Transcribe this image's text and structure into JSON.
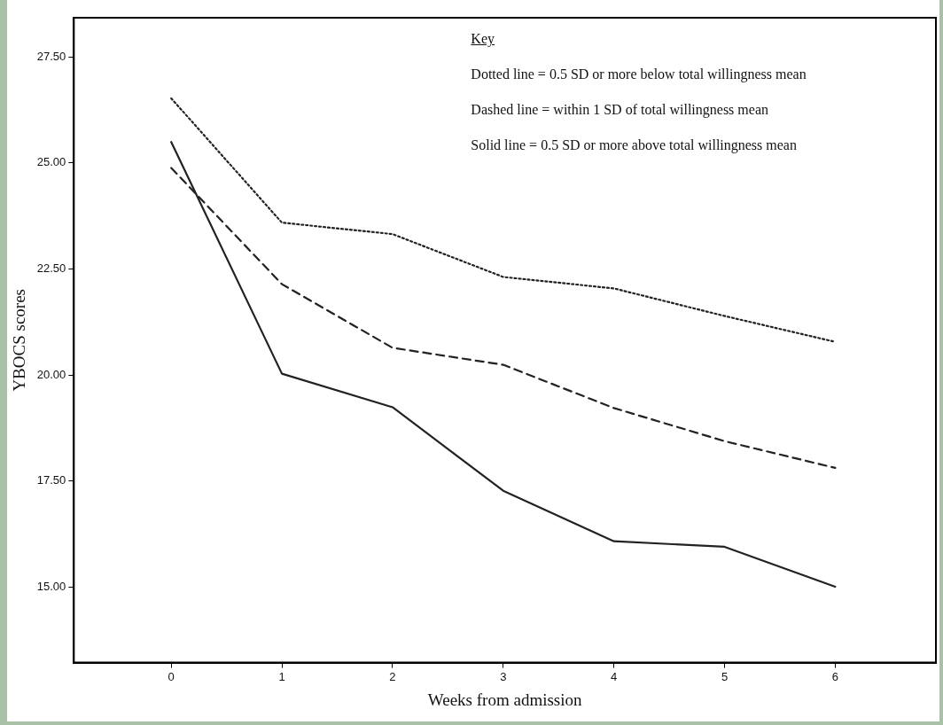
{
  "chart_data": {
    "type": "line",
    "xlabel": "Weeks from admission",
    "ylabel": "YBOCS scores",
    "x": [
      0,
      1,
      2,
      3,
      4,
      5,
      6
    ],
    "series": [
      {
        "color": "#222222",
        "line_style": "dotted",
        "values": [
          26.52,
          23.59,
          23.32,
          22.31,
          22.04,
          21.39,
          20.78
        ]
      },
      {
        "color": "#222222",
        "line_style": "dashed",
        "values": [
          24.88,
          22.14,
          20.64,
          20.24,
          19.22,
          18.44,
          17.81
        ]
      },
      {
        "color": "#222222",
        "line_style": "solid",
        "values": [
          25.49,
          20.03,
          19.24,
          17.27,
          16.08,
          15.95,
          15.01
        ]
      }
    ],
    "xlim": [
      -0.88,
      6.91
    ],
    "xticks": [
      0,
      1,
      2,
      3,
      4,
      5,
      6
    ],
    "ylim": [
      13.22,
      28.42
    ],
    "yticks": [
      {
        "value": 15,
        "label": "15.00"
      },
      {
        "value": 17.5,
        "label": "17.50"
      },
      {
        "value": 20,
        "label": "20.00"
      },
      {
        "value": 22.5,
        "label": "22.50"
      },
      {
        "value": 25,
        "label": "25.00"
      },
      {
        "value": 27.5,
        "label": "27.50"
      }
    ],
    "grid": false,
    "legend": false,
    "annotations": [
      "Key",
      "Dotted line = 0.5 SD or more below total willingness mean",
      "Dashed line = within 1 SD of total willingness mean",
      "Solid line = 0.5 SD or more above total willingness mean"
    ]
  }
}
